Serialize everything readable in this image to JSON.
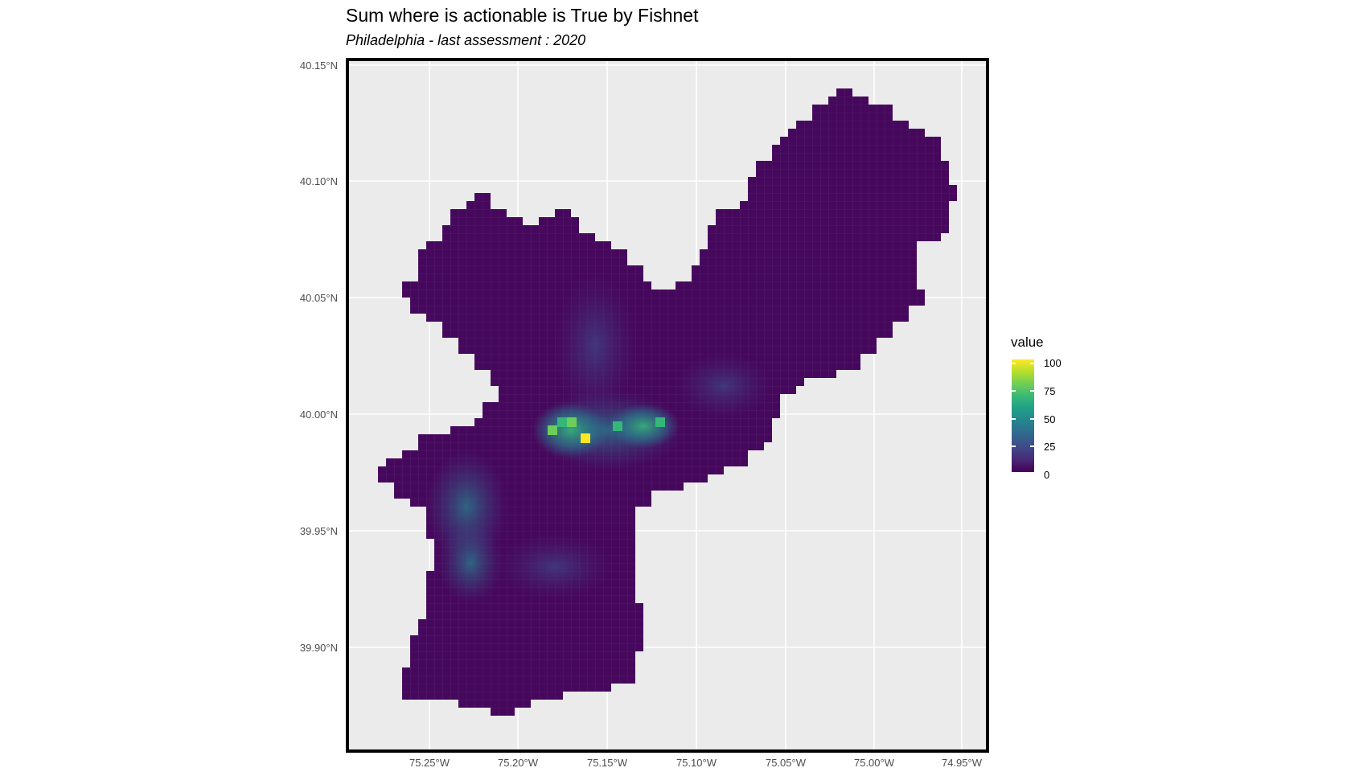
{
  "title": "Sum where is actionable is True by Fishnet",
  "subtitle": "Philadelphia - last assessment : 2020",
  "map": {
    "background": "#ebebeb",
    "grid_color": "#ffffff",
    "frame_color": "#000000",
    "lat_ticks": [
      "40.15°N",
      "40.10°N",
      "40.05°N",
      "40.00°N",
      "39.95°N",
      "39.90°N"
    ],
    "lon_ticks": [
      "75.25°W",
      "75.20°W",
      "75.15°W",
      "75.10°W",
      "75.05°W",
      "75.00°W",
      "74.95°W"
    ]
  },
  "legend": {
    "title": "value",
    "labels": [
      "100",
      "75",
      "50",
      "25",
      "0"
    ],
    "palette": [
      "#440154",
      "#482878",
      "#3e4a89",
      "#31688e",
      "#26828e",
      "#1f9e89",
      "#35b779",
      "#6dcd59",
      "#b4de2c",
      "#fde725"
    ],
    "min": 0,
    "max": 100
  }
}
